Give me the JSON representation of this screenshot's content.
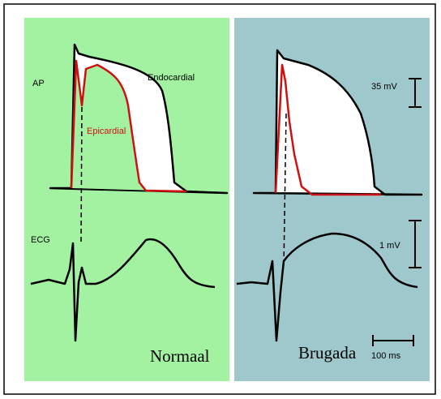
{
  "panels": [
    {
      "ap_label": "AP",
      "ecg_label": "ECG",
      "endocardial_label": "Endocardial",
      "epicardial_label": "Epicardial",
      "title": "Normaal"
    },
    {
      "title": "Brugada",
      "voltage_scale_ap": "35 mV",
      "voltage_scale_ecg": "1 mV",
      "time_scale": "100 ms"
    }
  ]
}
